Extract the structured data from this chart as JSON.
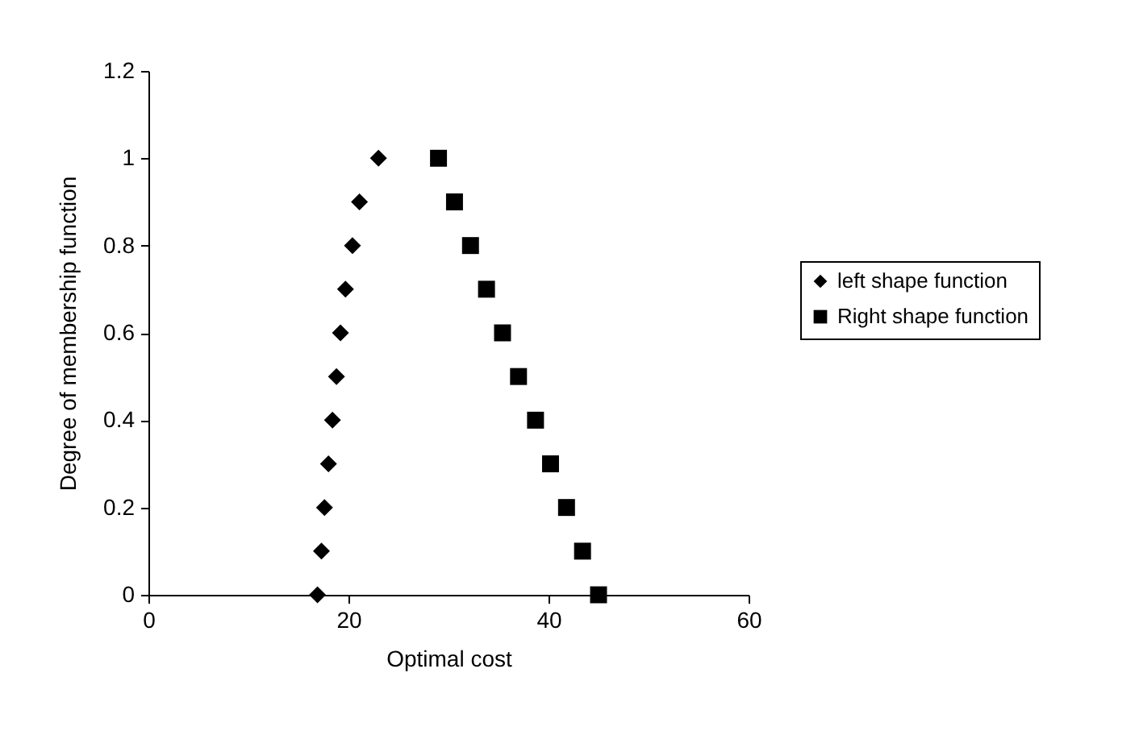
{
  "chart_data": {
    "type": "scatter",
    "xlabel": "Optimal cost",
    "ylabel": "Degree of membership function",
    "xlim": [
      0,
      60
    ],
    "xticks": [
      0,
      20,
      40,
      60
    ],
    "ylim": [
      0,
      1.2
    ],
    "yticks": [
      0,
      0.2,
      0.4,
      0.6,
      0.8,
      1,
      1.2
    ],
    "grid": false,
    "legend": "right",
    "series": [
      {
        "name": "left shape function",
        "color": "#000000",
        "marker": "diamond",
        "x": [
          16.9,
          17.3,
          17.6,
          18.0,
          18.4,
          18.8,
          19.2,
          19.7,
          20.4,
          21.1,
          23.0
        ],
        "values": [
          0,
          0.1,
          0.2,
          0.3,
          0.4,
          0.5,
          0.6,
          0.7,
          0.8,
          0.9,
          1
        ]
      },
      {
        "name": "Right shape function",
        "color": "#000000",
        "marker": "square",
        "x": [
          29.0,
          30.6,
          32.2,
          33.8,
          35.4,
          37.0,
          38.7,
          40.2,
          41.8,
          43.4,
          45.0
        ],
        "values": [
          1,
          0.9,
          0.8,
          0.7,
          0.6,
          0.5,
          0.4,
          0.3,
          0.2,
          0.1,
          0
        ]
      }
    ]
  }
}
